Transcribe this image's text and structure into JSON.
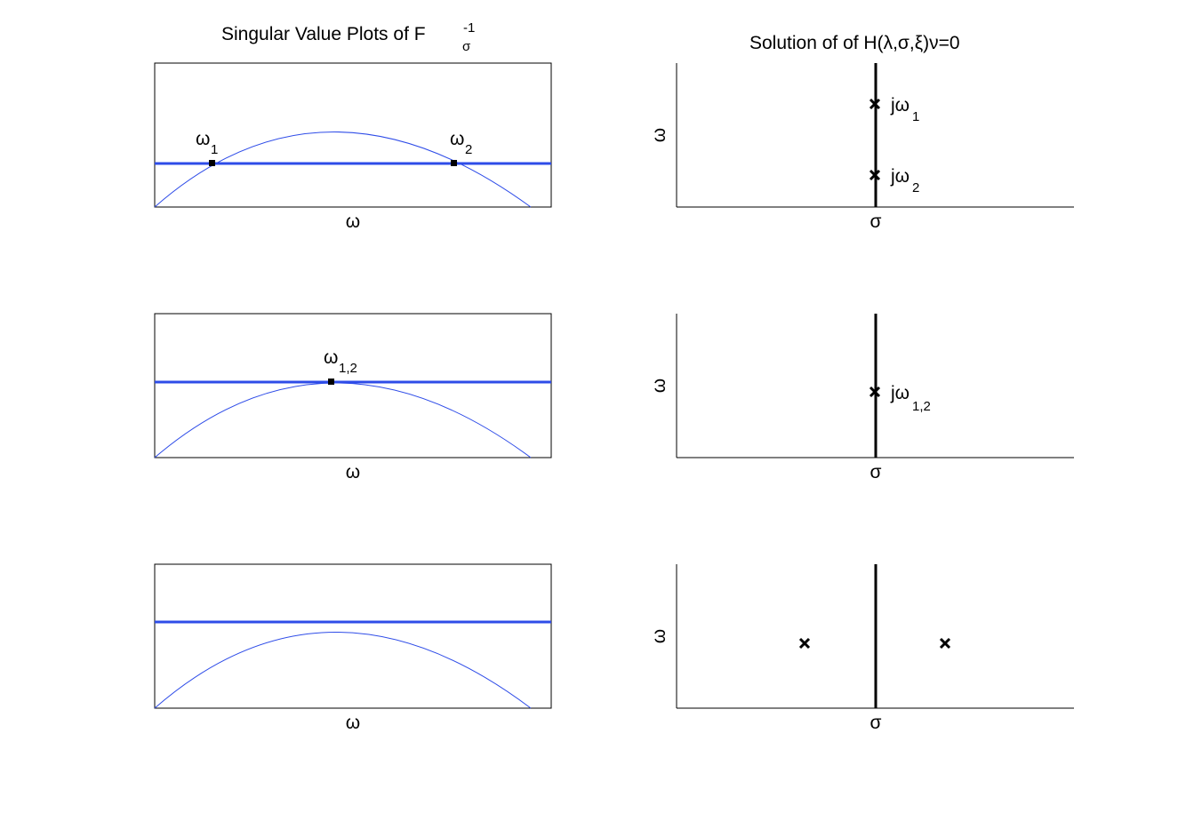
{
  "colors": {
    "curve": "#2e4ce8",
    "line": "#2e4ce8",
    "axis": "#000000"
  },
  "left": {
    "title_main": "Singular Value Plots of F",
    "title_sub": "σ",
    "title_sup": "-1",
    "xlabel": "ω",
    "panels": [
      {
        "labels": [
          {
            "main": "ω",
            "sub": "1"
          },
          {
            "main": "ω",
            "sub": "2"
          }
        ]
      },
      {
        "labels": [
          {
            "main": "ω",
            "sub": "1,2"
          }
        ]
      },
      {
        "labels": []
      }
    ]
  },
  "right": {
    "title": "Solution of of H(λ,σ,ξ)ν=0",
    "xlabel": "σ",
    "ylabel": "ω",
    "panels": [
      {
        "labels": [
          {
            "main": "jω",
            "sub": "1"
          },
          {
            "main": "jω",
            "sub": "2"
          }
        ]
      },
      {
        "labels": [
          {
            "main": "jω",
            "sub": "1,2"
          }
        ]
      },
      {
        "labels": []
      }
    ]
  }
}
